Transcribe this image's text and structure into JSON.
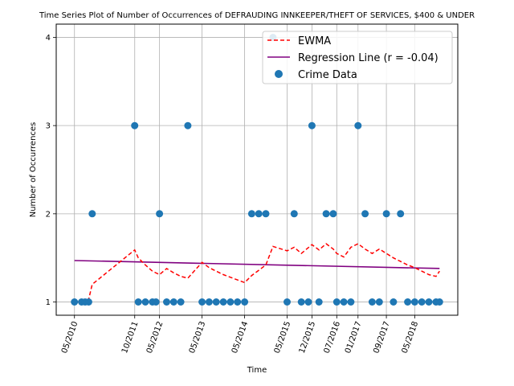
{
  "chart_data": {
    "type": "scatter",
    "title": "Time Series Plot of Number of Occurrences of DEFRAUDING INNKEEPER/THEFT OF SERVICES, $400 & UNDER",
    "xlabel": "Time",
    "ylabel": "Number of Occurrences",
    "x_ticks": [
      "05/2010",
      "10/2011",
      "05/2012",
      "05/2013",
      "05/2014",
      "05/2015",
      "12/2015",
      "07/2016",
      "01/2017",
      "09/2017",
      "05/2018"
    ],
    "y_ticks": [
      "1",
      "2",
      "3",
      "4"
    ],
    "ylim": [
      0.85,
      4.15
    ],
    "grid": true,
    "legend_position": "top-right",
    "colors": {
      "ewma": "#ff0000",
      "regression": "#800080",
      "points": "#1f77b4"
    },
    "series": [
      {
        "name": "EWMA",
        "kind": "line-dashed",
        "x": [
          "05/2010",
          "07/2010",
          "08/2010",
          "09/2010",
          "10/2010",
          "10/2011",
          "11/2011",
          "01/2012",
          "03/2012",
          "05/2012",
          "07/2012",
          "09/2012",
          "11/2012",
          "01/2013",
          "05/2013",
          "07/2013",
          "09/2013",
          "11/2013",
          "01/2014",
          "03/2014",
          "05/2014",
          "07/2014",
          "09/2014",
          "11/2014",
          "01/2015",
          "05/2015",
          "07/2015",
          "09/2015",
          "12/2015",
          "02/2016",
          "04/2016",
          "06/2016",
          "07/2016",
          "09/2016",
          "11/2016",
          "01/2017",
          "03/2017",
          "05/2017",
          "07/2017",
          "09/2017",
          "11/2017",
          "01/2018",
          "03/2018",
          "05/2018",
          "07/2018",
          "09/2018",
          "11/2018",
          "12/2018"
        ],
        "y": [
          1.0,
          1.0,
          1.0,
          1.03,
          1.2,
          1.59,
          1.5,
          1.42,
          1.35,
          1.31,
          1.38,
          1.33,
          1.29,
          1.27,
          1.45,
          1.39,
          1.35,
          1.31,
          1.28,
          1.25,
          1.22,
          1.3,
          1.36,
          1.42,
          1.63,
          1.58,
          1.62,
          1.55,
          1.65,
          1.59,
          1.66,
          1.6,
          1.55,
          1.51,
          1.62,
          1.66,
          1.6,
          1.55,
          1.6,
          1.55,
          1.5,
          1.46,
          1.42,
          1.39,
          1.35,
          1.31,
          1.29,
          1.35
        ]
      },
      {
        "name": "Regression Line (r = -0.04)",
        "kind": "line",
        "x": [
          "05/2010",
          "12/2018"
        ],
        "y": [
          1.47,
          1.38
        ]
      },
      {
        "name": "Crime Data",
        "kind": "scatter",
        "x": [
          "05/2010",
          "07/2010",
          "08/2010",
          "09/2010",
          "10/2010",
          "10/2011",
          "11/2011",
          "01/2012",
          "03/2012",
          "04/2012",
          "05/2012",
          "07/2012",
          "09/2012",
          "11/2012",
          "01/2013",
          "05/2013",
          "07/2013",
          "09/2013",
          "11/2013",
          "01/2014",
          "03/2014",
          "05/2014",
          "07/2014",
          "09/2014",
          "11/2014",
          "01/2015",
          "05/2015",
          "07/2015",
          "09/2015",
          "11/2015",
          "12/2015",
          "02/2016",
          "04/2016",
          "06/2016",
          "07/2016",
          "09/2016",
          "11/2016",
          "01/2017",
          "03/2017",
          "05/2017",
          "07/2017",
          "09/2017",
          "11/2017",
          "01/2018",
          "03/2018",
          "05/2018",
          "07/2018",
          "09/2018",
          "11/2018",
          "12/2018"
        ],
        "y": [
          1,
          1,
          1,
          1,
          2,
          3,
          1,
          1,
          1,
          1,
          2,
          1,
          1,
          1,
          3,
          1,
          1,
          1,
          1,
          1,
          1,
          1,
          2,
          2,
          2,
          4,
          1,
          2,
          1,
          1,
          3,
          1,
          2,
          2,
          1,
          1,
          1,
          3,
          2,
          1,
          1,
          2,
          1,
          2,
          1,
          1,
          1,
          1,
          1,
          1
        ]
      }
    ]
  }
}
